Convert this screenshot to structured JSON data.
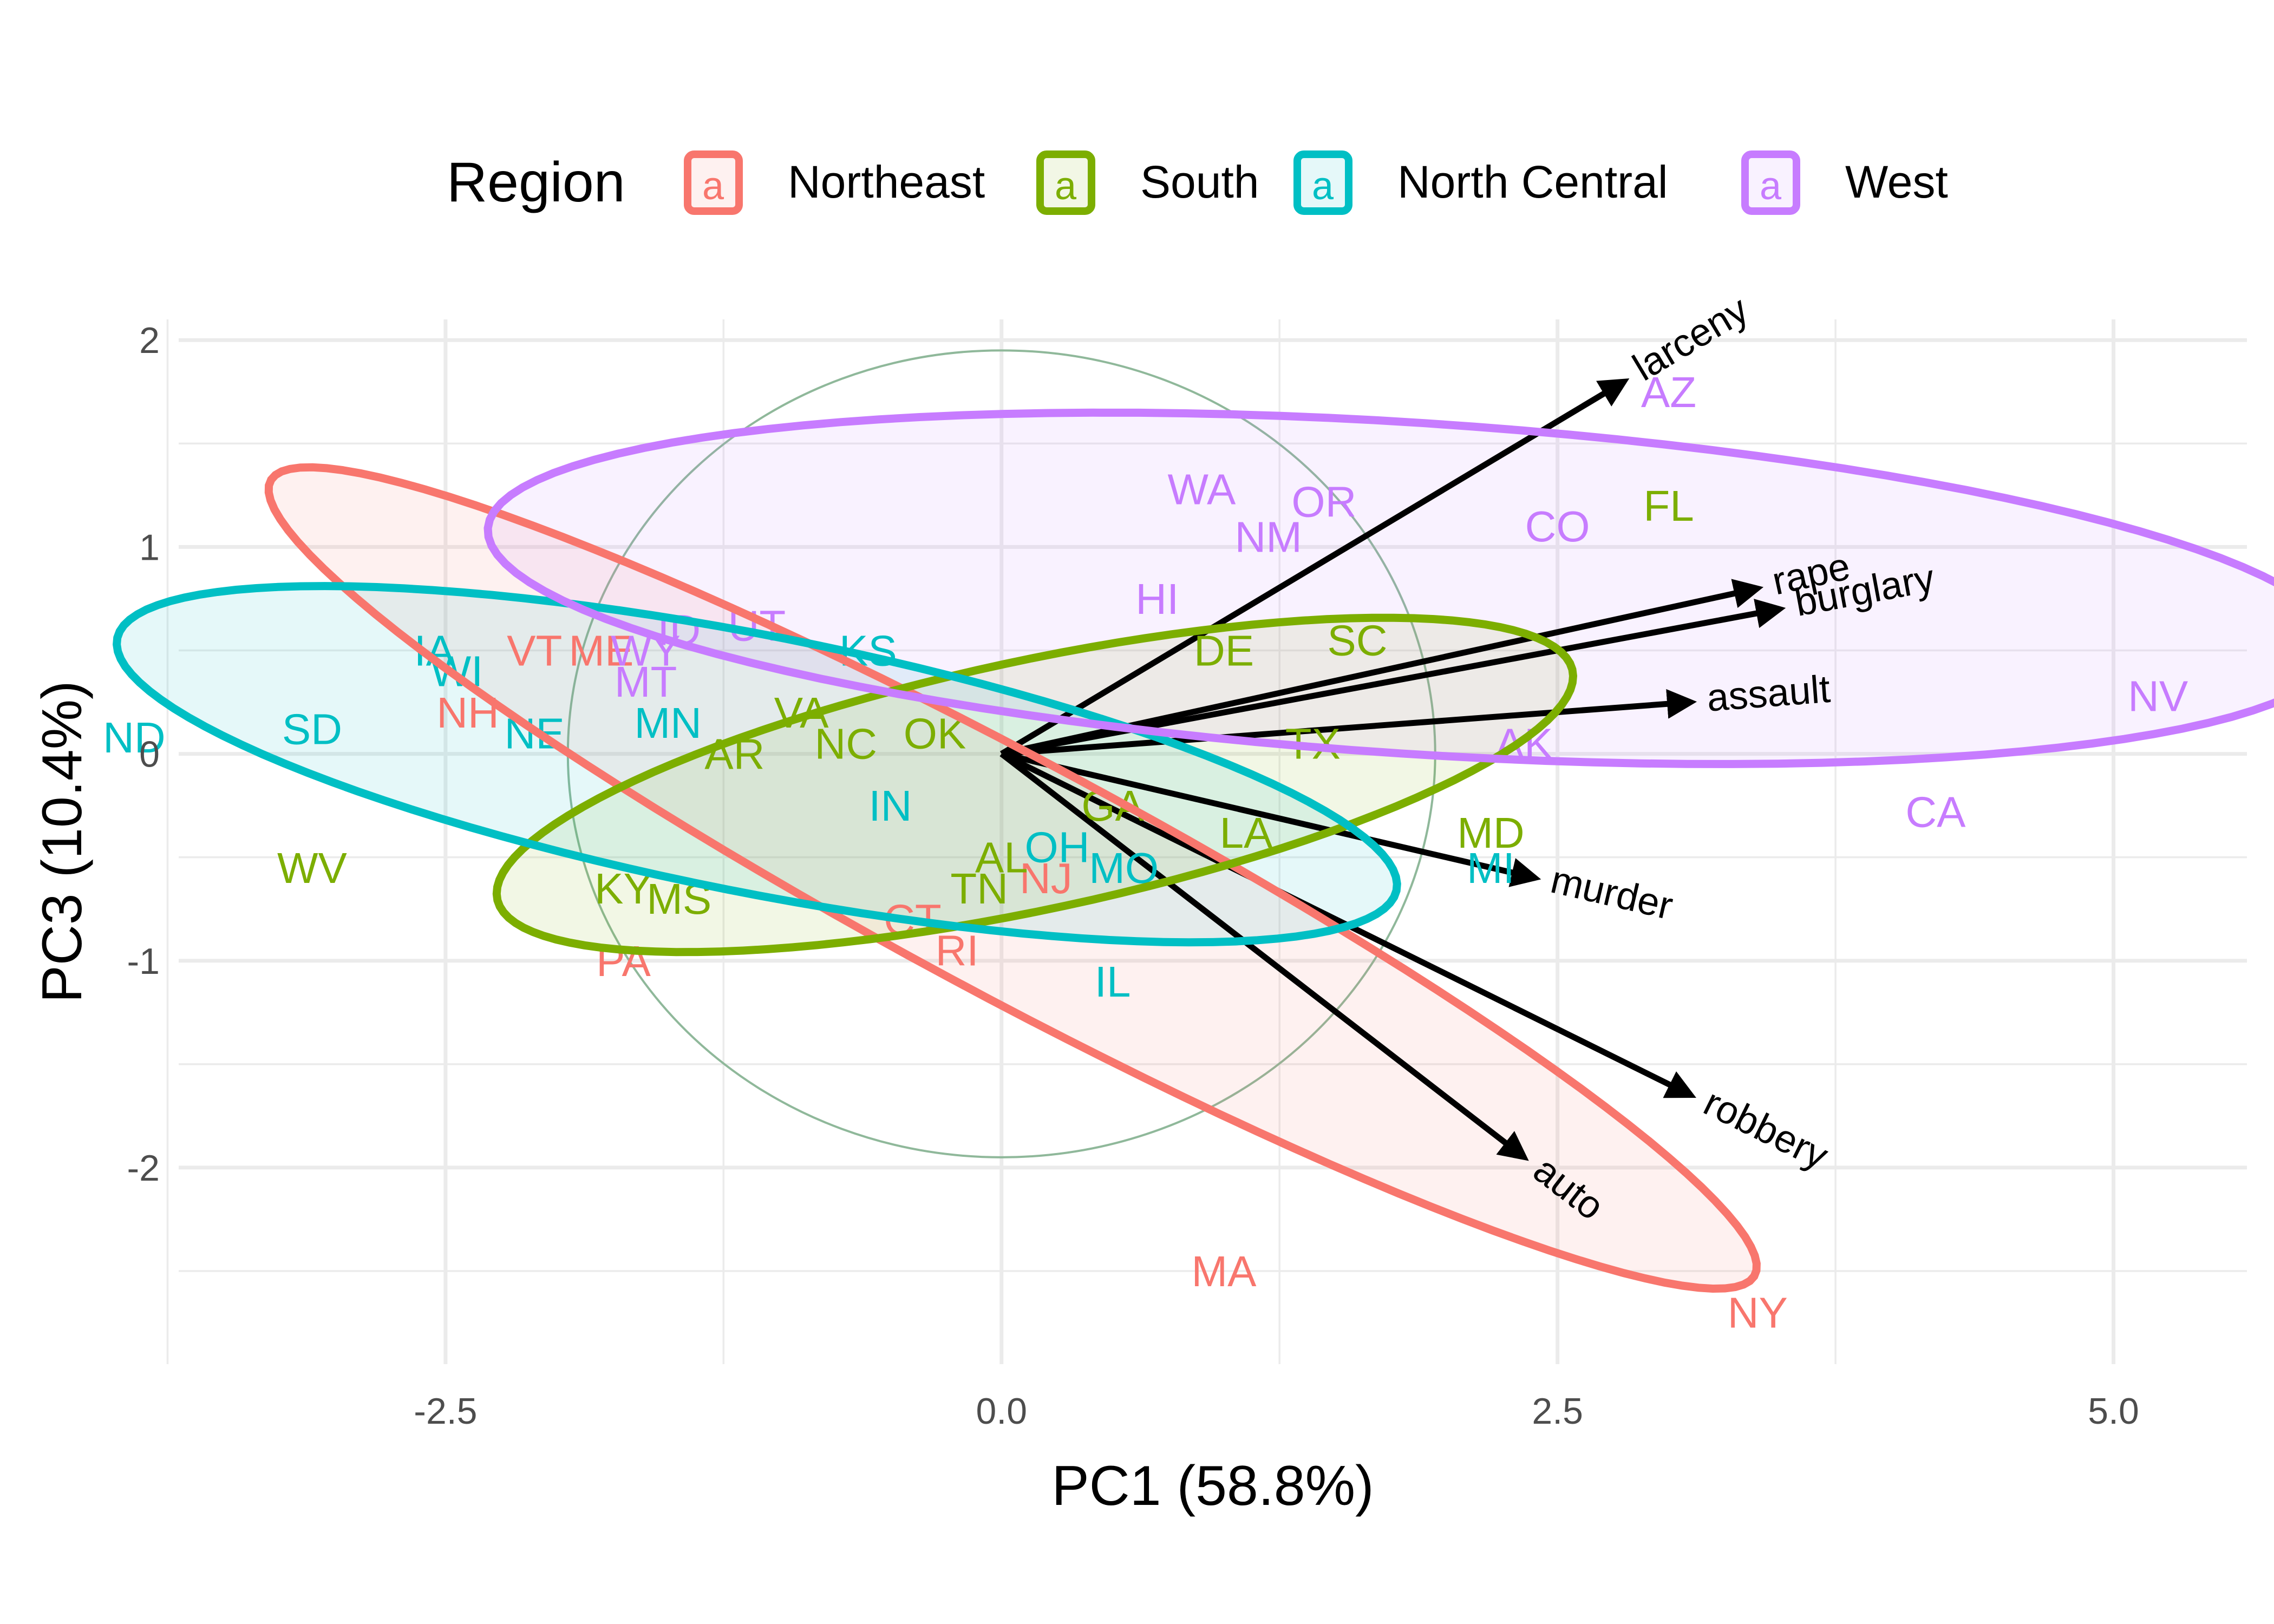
{
  "chart_data": {
    "type": "scatter",
    "subtype": "pca-biplot",
    "title": "",
    "xlabel": "PC1 (58.8%)",
    "ylabel": "PC3 (10.4%)",
    "xlim": [
      -3.7,
      5.6
    ],
    "ylim": [
      -2.95,
      2.1
    ],
    "xticks": [
      -2.5,
      0.0,
      2.5,
      5.0
    ],
    "xtick_labels": [
      "-2.5",
      "0.0",
      "2.5",
      "5.0"
    ],
    "yticks": [
      -2,
      -1,
      0,
      1,
      2
    ],
    "ytick_labels": [
      "-2",
      "-1",
      "0",
      "1",
      "2"
    ],
    "grid": true,
    "legend": {
      "title": "Region",
      "position": "top",
      "key_glyph": "a",
      "entries": [
        "Northeast",
        "South",
        "North Central",
        "West"
      ]
    },
    "colors": {
      "Northeast": "#F8766D",
      "South": "#7CAE00",
      "North Central": "#00BFC4",
      "West": "#C77CFF",
      "arrow": "#000000",
      "circle": "#8FB89A"
    },
    "correlation_circle_radius": 1.95,
    "series": [
      {
        "name": "Northeast",
        "points": [
          {
            "label": "VT",
            "x": -2.1,
            "y": 0.5
          },
          {
            "label": "ME",
            "x": -1.8,
            "y": 0.5
          },
          {
            "label": "NH",
            "x": -2.4,
            "y": 0.2
          },
          {
            "label": "PA",
            "x": -1.7,
            "y": -1.0
          },
          {
            "label": "CT",
            "x": -0.4,
            "y": -0.8
          },
          {
            "label": "NJ",
            "x": 0.2,
            "y": -0.6
          },
          {
            "label": "RI",
            "x": -0.2,
            "y": -0.95
          },
          {
            "label": "MA",
            "x": 1.0,
            "y": -2.5
          },
          {
            "label": "NY",
            "x": 3.4,
            "y": -2.7
          }
        ],
        "ellipse": {
          "cx": 0.05,
          "cy": -0.6,
          "rx": 3.85,
          "ry": 0.56,
          "angle": -30
        }
      },
      {
        "name": "South",
        "points": [
          {
            "label": "WV",
            "x": -3.1,
            "y": -0.55
          },
          {
            "label": "KY",
            "x": -1.7,
            "y": -0.65
          },
          {
            "label": "MS",
            "x": -1.45,
            "y": -0.7
          },
          {
            "label": "AR",
            "x": -1.2,
            "y": 0.0
          },
          {
            "label": "VA",
            "x": -0.9,
            "y": 0.2
          },
          {
            "label": "NC",
            "x": -0.7,
            "y": 0.05
          },
          {
            "label": "OK",
            "x": -0.3,
            "y": 0.1
          },
          {
            "label": "AL",
            "x": 0.0,
            "y": -0.5
          },
          {
            "label": "TN",
            "x": -0.1,
            "y": -0.65
          },
          {
            "label": "GA",
            "x": 0.5,
            "y": -0.25
          },
          {
            "label": "LA",
            "x": 1.1,
            "y": -0.38
          },
          {
            "label": "DE",
            "x": 1.0,
            "y": 0.5
          },
          {
            "label": "SC",
            "x": 1.6,
            "y": 0.55
          },
          {
            "label": "TX",
            "x": 1.4,
            "y": 0.05
          },
          {
            "label": "MD",
            "x": 2.2,
            "y": -0.38
          },
          {
            "label": "FL",
            "x": 3.0,
            "y": 1.2
          }
        ],
        "ellipse": {
          "cx": 0.15,
          "cy": -0.15,
          "rx": 2.48,
          "ry": 0.6,
          "angle": 13
        }
      },
      {
        "name": "North Central",
        "points": [
          {
            "label": "ND",
            "x": -3.9,
            "y": 0.08
          },
          {
            "label": "SD",
            "x": -3.1,
            "y": 0.12
          },
          {
            "label": "IA",
            "x": -2.55,
            "y": 0.5
          },
          {
            "label": "WI",
            "x": -2.45,
            "y": 0.4
          },
          {
            "label": "NE",
            "x": -2.1,
            "y": 0.1
          },
          {
            "label": "MN",
            "x": -1.5,
            "y": 0.15
          },
          {
            "label": "KS",
            "x": -0.6,
            "y": 0.5
          },
          {
            "label": "IN",
            "x": -0.5,
            "y": -0.25
          },
          {
            "label": "OH",
            "x": 0.25,
            "y": -0.45
          },
          {
            "label": "MO",
            "x": 0.55,
            "y": -0.55
          },
          {
            "label": "IL",
            "x": 0.5,
            "y": -1.1
          },
          {
            "label": "MI",
            "x": 2.2,
            "y": -0.55
          }
        ],
        "ellipse": {
          "cx": -1.1,
          "cy": -0.05,
          "rx": 2.94,
          "ry": 0.62,
          "angle": -12
        }
      },
      {
        "name": "West",
        "points": [
          {
            "label": "ID",
            "x": -1.45,
            "y": 0.6
          },
          {
            "label": "UT",
            "x": -1.1,
            "y": 0.62
          },
          {
            "label": "MT",
            "x": -1.6,
            "y": 0.35
          },
          {
            "label": "NV",
            "x": 5.2,
            "y": 0.28
          },
          {
            "label": "WY",
            "x": -1.6,
            "y": 0.5
          },
          {
            "label": "WA",
            "x": 0.9,
            "y": 1.28
          },
          {
            "label": "OR",
            "x": 1.45,
            "y": 1.22
          },
          {
            "label": "NM",
            "x": 1.2,
            "y": 1.05
          },
          {
            "label": "HI",
            "x": 0.7,
            "y": 0.75
          },
          {
            "label": "CO",
            "x": 2.5,
            "y": 1.1
          },
          {
            "label": "AZ",
            "x": 3.0,
            "y": 1.75
          },
          {
            "label": "AK",
            "x": 2.35,
            "y": 0.05
          },
          {
            "label": "CA",
            "x": 4.2,
            "y": -0.28
          }
        ],
        "ellipse": {
          "cx": 1.85,
          "cy": 0.8,
          "rx": 4.17,
          "ry": 0.8,
          "angle": -4
        }
      }
    ],
    "arrows": [
      {
        "label": "larceny",
        "x": 2.8,
        "y": 1.8
      },
      {
        "label": "rape",
        "x": 3.4,
        "y": 0.8
      },
      {
        "label": "burglary",
        "x": 3.5,
        "y": 0.7
      },
      {
        "label": "assault",
        "x": 3.1,
        "y": 0.25
      },
      {
        "label": "murder",
        "x": 2.4,
        "y": -0.6
      },
      {
        "label": "robbery",
        "x": 3.1,
        "y": -1.65
      },
      {
        "label": "auto",
        "x": 2.35,
        "y": -1.95
      }
    ]
  }
}
